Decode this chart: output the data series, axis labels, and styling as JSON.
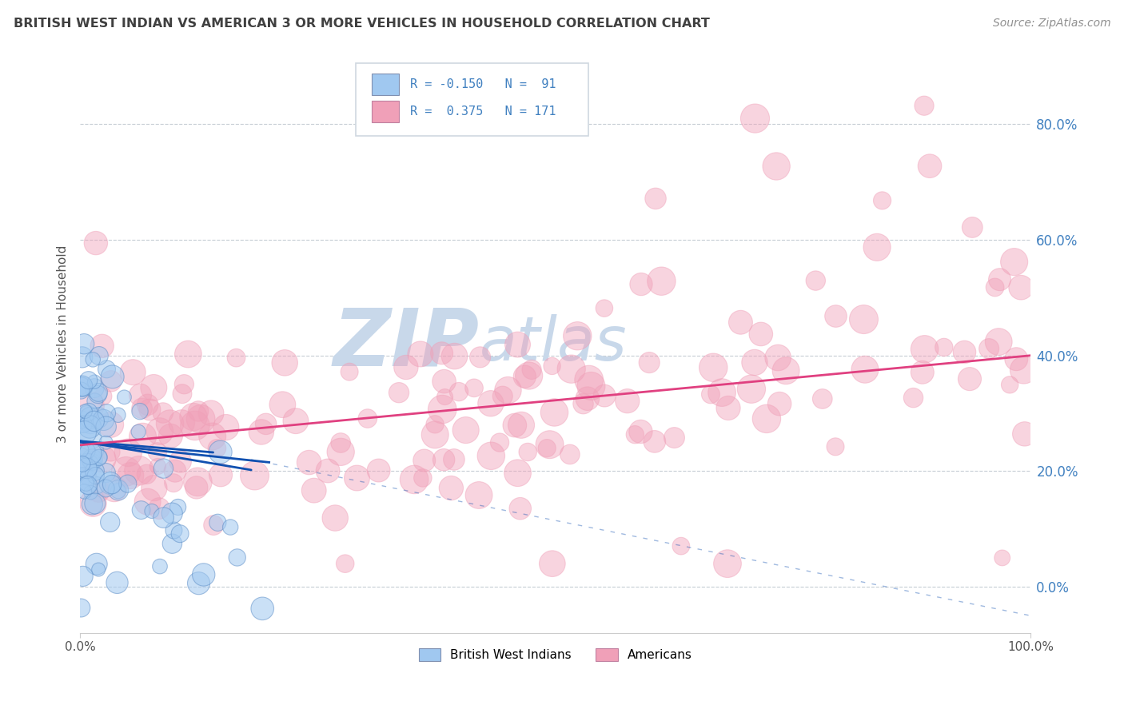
{
  "title": "BRITISH WEST INDIAN VS AMERICAN 3 OR MORE VEHICLES IN HOUSEHOLD CORRELATION CHART",
  "source": "Source: ZipAtlas.com",
  "ylabel": "3 or more Vehicles in Household",
  "ytick_values": [
    0.0,
    0.2,
    0.4,
    0.6,
    0.8
  ],
  "xlim": [
    0.0,
    1.0
  ],
  "ylim": [
    -0.08,
    0.92
  ],
  "legend_blue_R": "-0.150",
  "legend_blue_N": "91",
  "legend_pink_R": "0.375",
  "legend_pink_N": "171",
  "blue_color": "#a0c8f0",
  "pink_color": "#f0a0b8",
  "blue_line_color": "#1050b0",
  "pink_line_color": "#e04080",
  "blue_label": "British West Indians",
  "pink_label": "Americans",
  "watermark_zip": "ZIP",
  "watermark_atlas": "atlas",
  "watermark_color": "#c8d8ea",
  "background_color": "#ffffff",
  "grid_color": "#c0c8d0",
  "title_color": "#404040",
  "source_color": "#909090",
  "tick_label_color": "#4080c0",
  "axis_color": "#cccccc"
}
